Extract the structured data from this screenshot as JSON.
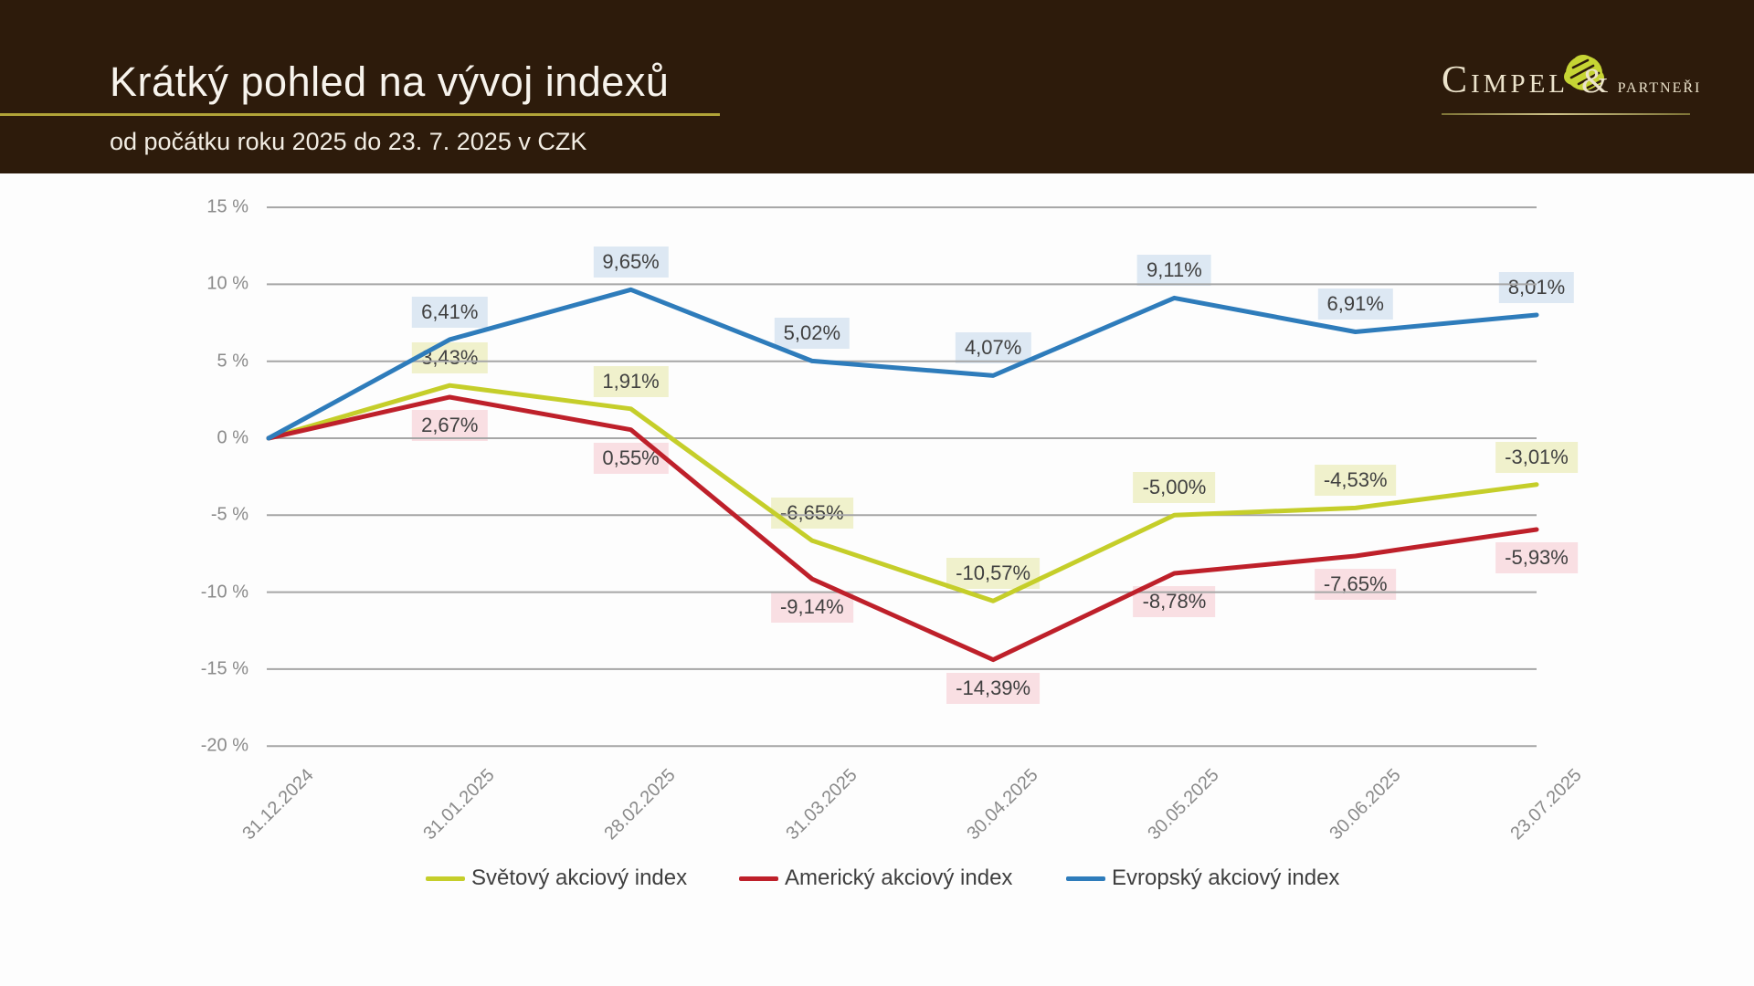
{
  "header": {
    "title": "Krátký pohled na vývoj indexů",
    "subtitle": "od počátku roku 2025 do 23. 7. 2025 v CZK",
    "logo": {
      "primary": "Cimpel",
      "ampersand": "&",
      "secondary": "partneři"
    },
    "colors": {
      "background": "#2d1b0b",
      "rule": "#b1a438",
      "text": "#f7f3ec"
    }
  },
  "chart_data": {
    "type": "line",
    "title": "",
    "x_labels": [
      "31.12.2024",
      "31.01.2025",
      "28.02.2025",
      "31.03.2025",
      "30.04.2025",
      "30.05.2025",
      "30.06.2025",
      "23.07.2025"
    ],
    "y_ticks": [
      {
        "value": 15,
        "label": "15 %"
      },
      {
        "value": 10,
        "label": "10 %"
      },
      {
        "value": 5,
        "label": "5 %"
      },
      {
        "value": 0,
        "label": "0 %"
      },
      {
        "value": -5,
        "label": "-5 %"
      },
      {
        "value": -10,
        "label": "-10 %"
      },
      {
        "value": -15,
        "label": "-15 %"
      },
      {
        "value": -20,
        "label": "-20 %"
      }
    ],
    "ylim": [
      -20,
      15
    ],
    "grid": true,
    "grid_color": "#a6a6a6",
    "axis_text_color": "#8a8a8a",
    "label_text_color": "#404040",
    "legend_position": "bottom",
    "series": [
      {
        "name": "Světový akciový index",
        "color": "#c5ce2a",
        "label_bg": "rgba(238,240,198,0.9)",
        "label_side": "above",
        "values": [
          0,
          3.43,
          1.91,
          -6.65,
          -10.57,
          -5.0,
          -4.53,
          -3.01
        ],
        "labels": [
          null,
          "3,43%",
          "1,91%",
          "-6,65%",
          "-10,57%",
          "-5,00%",
          "-4,53%",
          "-3,01%"
        ]
      },
      {
        "name": "Americký akciový index",
        "color": "#be202a",
        "label_bg": "rgba(248,220,224,0.9)",
        "label_side": "below",
        "values": [
          0,
          2.67,
          0.55,
          -9.14,
          -14.39,
          -8.78,
          -7.65,
          -5.93
        ],
        "labels": [
          null,
          "2,67%",
          "0,55%",
          "-9,14%",
          "-14,39%",
          "-8,78%",
          "-7,65%",
          "-5,93%"
        ]
      },
      {
        "name": "Evropský akciový index",
        "color": "#2e7cbb",
        "label_bg": "rgba(217,230,242,0.9)",
        "label_side": "above",
        "values": [
          0,
          6.41,
          9.65,
          5.02,
          4.07,
          9.11,
          6.91,
          8.01
        ],
        "labels": [
          null,
          "6,41%",
          "9,65%",
          "5,02%",
          "4,07%",
          "9,11%",
          "6,91%",
          "8,01%"
        ]
      }
    ]
  }
}
